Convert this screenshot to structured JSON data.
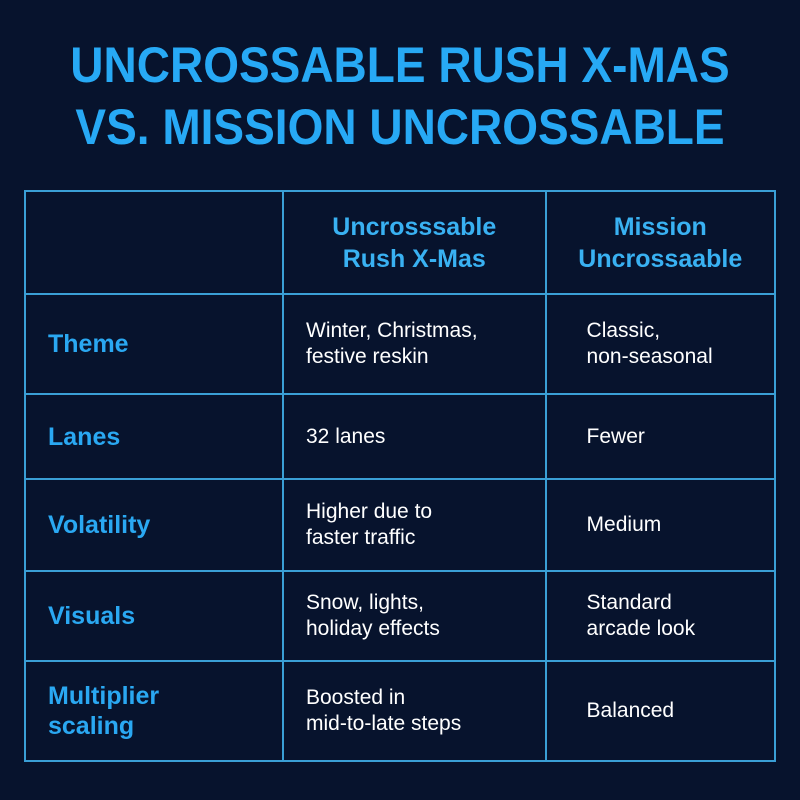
{
  "title": {
    "line1": "UNCROSSABLE RUSH X-MAS",
    "line2": "VS. MISSION UNCROSSABLE"
  },
  "table": {
    "headers": [
      "",
      "Uncrosssable Rush X-Mas",
      "Mission Uncrossaable"
    ],
    "header_lines": [
      [
        "Uncrosssable",
        "Rush X-Mas"
      ],
      [
        "Mission",
        "Uncrossaable"
      ]
    ],
    "rows": [
      {
        "label": "Theme",
        "a": [
          "Winter, Christmas,",
          "festive reskin"
        ],
        "b": [
          "Classic,",
          "non-seasonal"
        ]
      },
      {
        "label": "Lanes",
        "a": [
          "32 lanes"
        ],
        "b": [
          "Fewer"
        ]
      },
      {
        "label": "Volatility",
        "a": [
          "Higher due to",
          "faster traffic"
        ],
        "b": [
          "Medium"
        ]
      },
      {
        "label": "Visuals",
        "a": [
          "Snow, lights,",
          "holiday effects"
        ],
        "b": [
          "Standard",
          "arcade look"
        ]
      },
      {
        "label": "Multiplier scaling",
        "label_lines": [
          "Multiplier",
          "scaling"
        ],
        "a": [
          "Boosted in",
          "mid-to-late steps"
        ],
        "b": [
          "Balanced"
        ]
      }
    ]
  },
  "colors": {
    "background": "#07132d",
    "accent": "#27a9f5",
    "border": "#3a9fd6",
    "text": "#ffffff"
  }
}
